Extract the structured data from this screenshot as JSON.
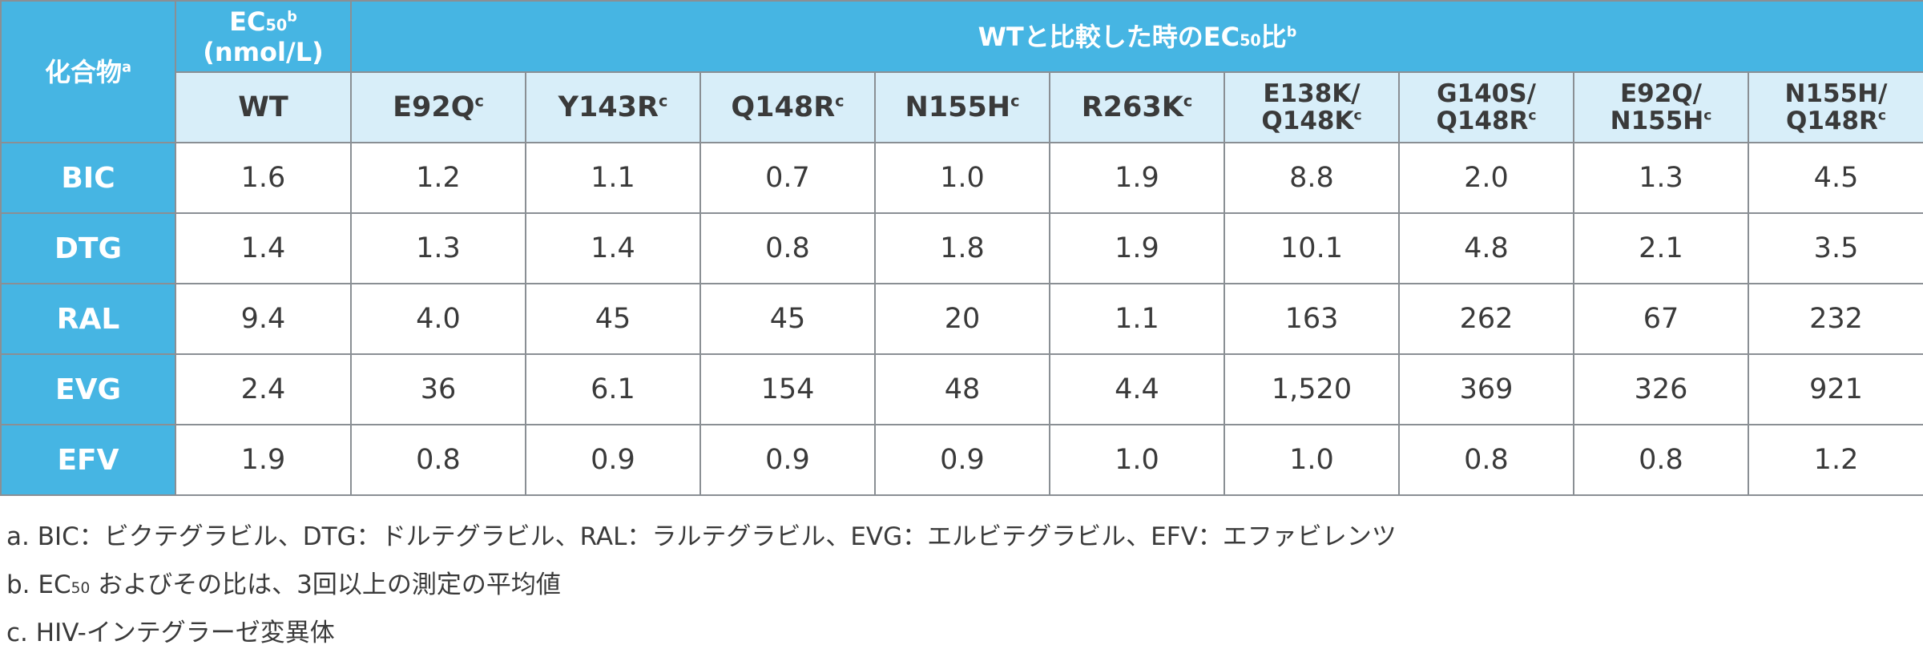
{
  "table": {
    "corner_label": "化合物",
    "corner_sup": "a",
    "ec50_line1_prefix": "EC",
    "ec50_line1_sub": "50",
    "ec50_line1_sup": "b",
    "ec50_line2": "(nmol/L)",
    "ratio_prefix": "WTと比較した時のEC",
    "ratio_sub": "50",
    "ratio_suffix": "比",
    "ratio_sup": "b",
    "columns": [
      {
        "l1": "WT",
        "l2": "",
        "sup": ""
      },
      {
        "l1": "E92Q",
        "l2": "",
        "sup": "c"
      },
      {
        "l1": "Y143R",
        "l2": "",
        "sup": "c"
      },
      {
        "l1": "Q148R",
        "l2": "",
        "sup": "c"
      },
      {
        "l1": "N155H",
        "l2": "",
        "sup": "c"
      },
      {
        "l1": "R263K",
        "l2": "",
        "sup": "c"
      },
      {
        "l1": "E138K/",
        "l2": "Q148K",
        "sup": "c"
      },
      {
        "l1": "G140S/",
        "l2": "Q148R",
        "sup": "c"
      },
      {
        "l1": "E92Q/",
        "l2": "N155H",
        "sup": "c"
      },
      {
        "l1": "N155H/",
        "l2": "Q148R",
        "sup": "c"
      }
    ],
    "rows": [
      {
        "label": "BIC",
        "values": [
          "1.6",
          "1.2",
          "1.1",
          "0.7",
          "1.0",
          "1.9",
          "8.8",
          "2.0",
          "1.3",
          "4.5"
        ]
      },
      {
        "label": "DTG",
        "values": [
          "1.4",
          "1.3",
          "1.4",
          "0.8",
          "1.8",
          "1.9",
          "10.1",
          "4.8",
          "2.1",
          "3.5"
        ]
      },
      {
        "label": "RAL",
        "values": [
          "9.4",
          "4.0",
          "45",
          "45",
          "20",
          "1.1",
          "163",
          "262",
          "67",
          "232"
        ]
      },
      {
        "label": "EVG",
        "values": [
          "2.4",
          "36",
          "6.1",
          "154",
          "48",
          "4.4",
          "1,520",
          "369",
          "326",
          "921"
        ]
      },
      {
        "label": "EFV",
        "values": [
          "1.9",
          "0.8",
          "0.9",
          "0.9",
          "0.9",
          "1.0",
          "1.0",
          "0.8",
          "0.8",
          "1.2"
        ]
      }
    ]
  },
  "notes": {
    "a": "a. BIC：ビクテグラビル、DTG：ドルテグラビル、RAL：ラルテグラビル、EVG：エルビテグラビル、EFV：エファビレンツ",
    "b_prefix": "b. EC",
    "b_sub": "50",
    "b_suffix": " およびその比は、3回以上の測定の平均値",
    "c": "c. HIV-インテグラーゼ変異体"
  },
  "colors": {
    "header_blue": "#46b5e3",
    "subheader_light_blue": "#d8eef9",
    "border_gray": "#8a8f94",
    "text_dark": "#3a3a3a"
  }
}
